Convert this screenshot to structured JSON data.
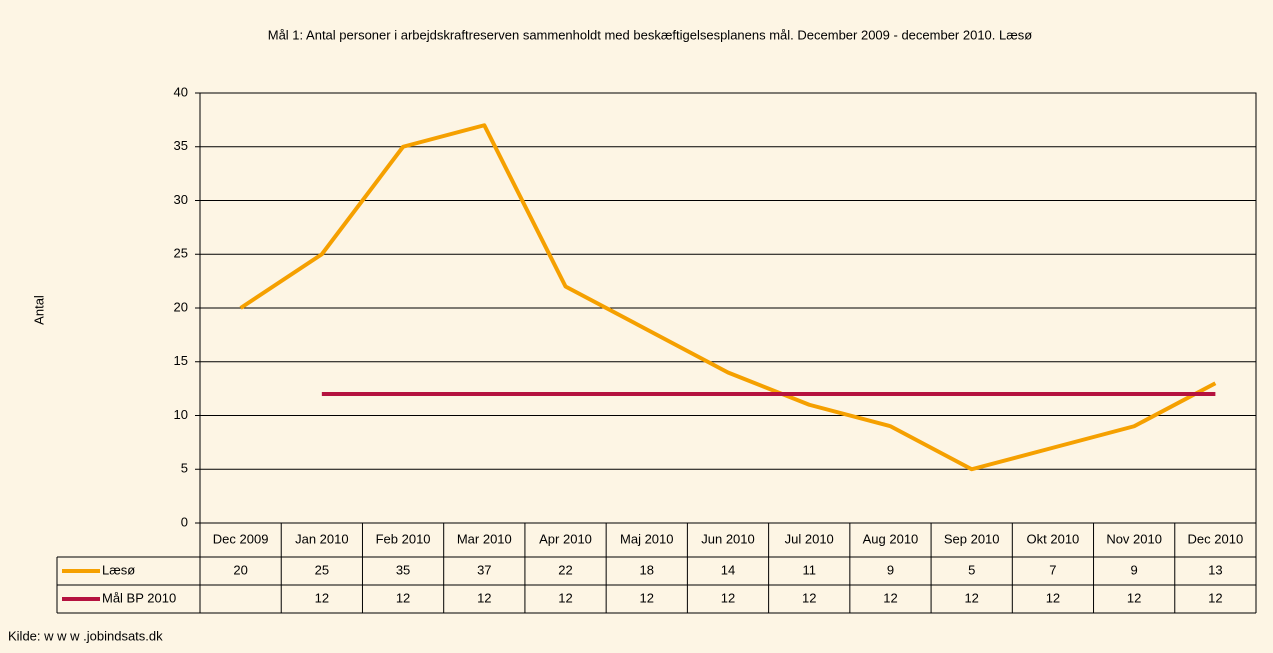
{
  "chart_data": {
    "type": "line",
    "title": "Mål 1: Antal personer i arbejdskraftreserven sammenholdt med beskæftigelsesplanens mål. December 2009 - december 2010. Læsø",
    "y_label": "Antal",
    "source": "Kilde: w w w .jobindsats.dk",
    "categories": [
      "Dec 2009",
      "Jan 2010",
      "Feb 2010",
      "Mar 2010",
      "Apr 2010",
      "Maj 2010",
      "Jun 2010",
      "Jul 2010",
      "Aug 2010",
      "Sep 2010",
      "Okt 2010",
      "Nov 2010",
      "Dec 2010"
    ],
    "series": [
      {
        "name": "Læsø",
        "color": "#f5a000",
        "values": [
          20,
          25,
          35,
          37,
          22,
          18,
          14,
          11,
          9,
          5,
          7,
          9,
          13
        ]
      },
      {
        "name": "Mål BP 2010",
        "color": "#b5123f",
        "values": [
          null,
          12,
          12,
          12,
          12,
          12,
          12,
          12,
          12,
          12,
          12,
          12,
          12
        ]
      }
    ],
    "ylim": [
      0,
      40
    ],
    "yticks": [
      0,
      5,
      10,
      15,
      20,
      25,
      30,
      35,
      40
    ],
    "grid": true
  }
}
